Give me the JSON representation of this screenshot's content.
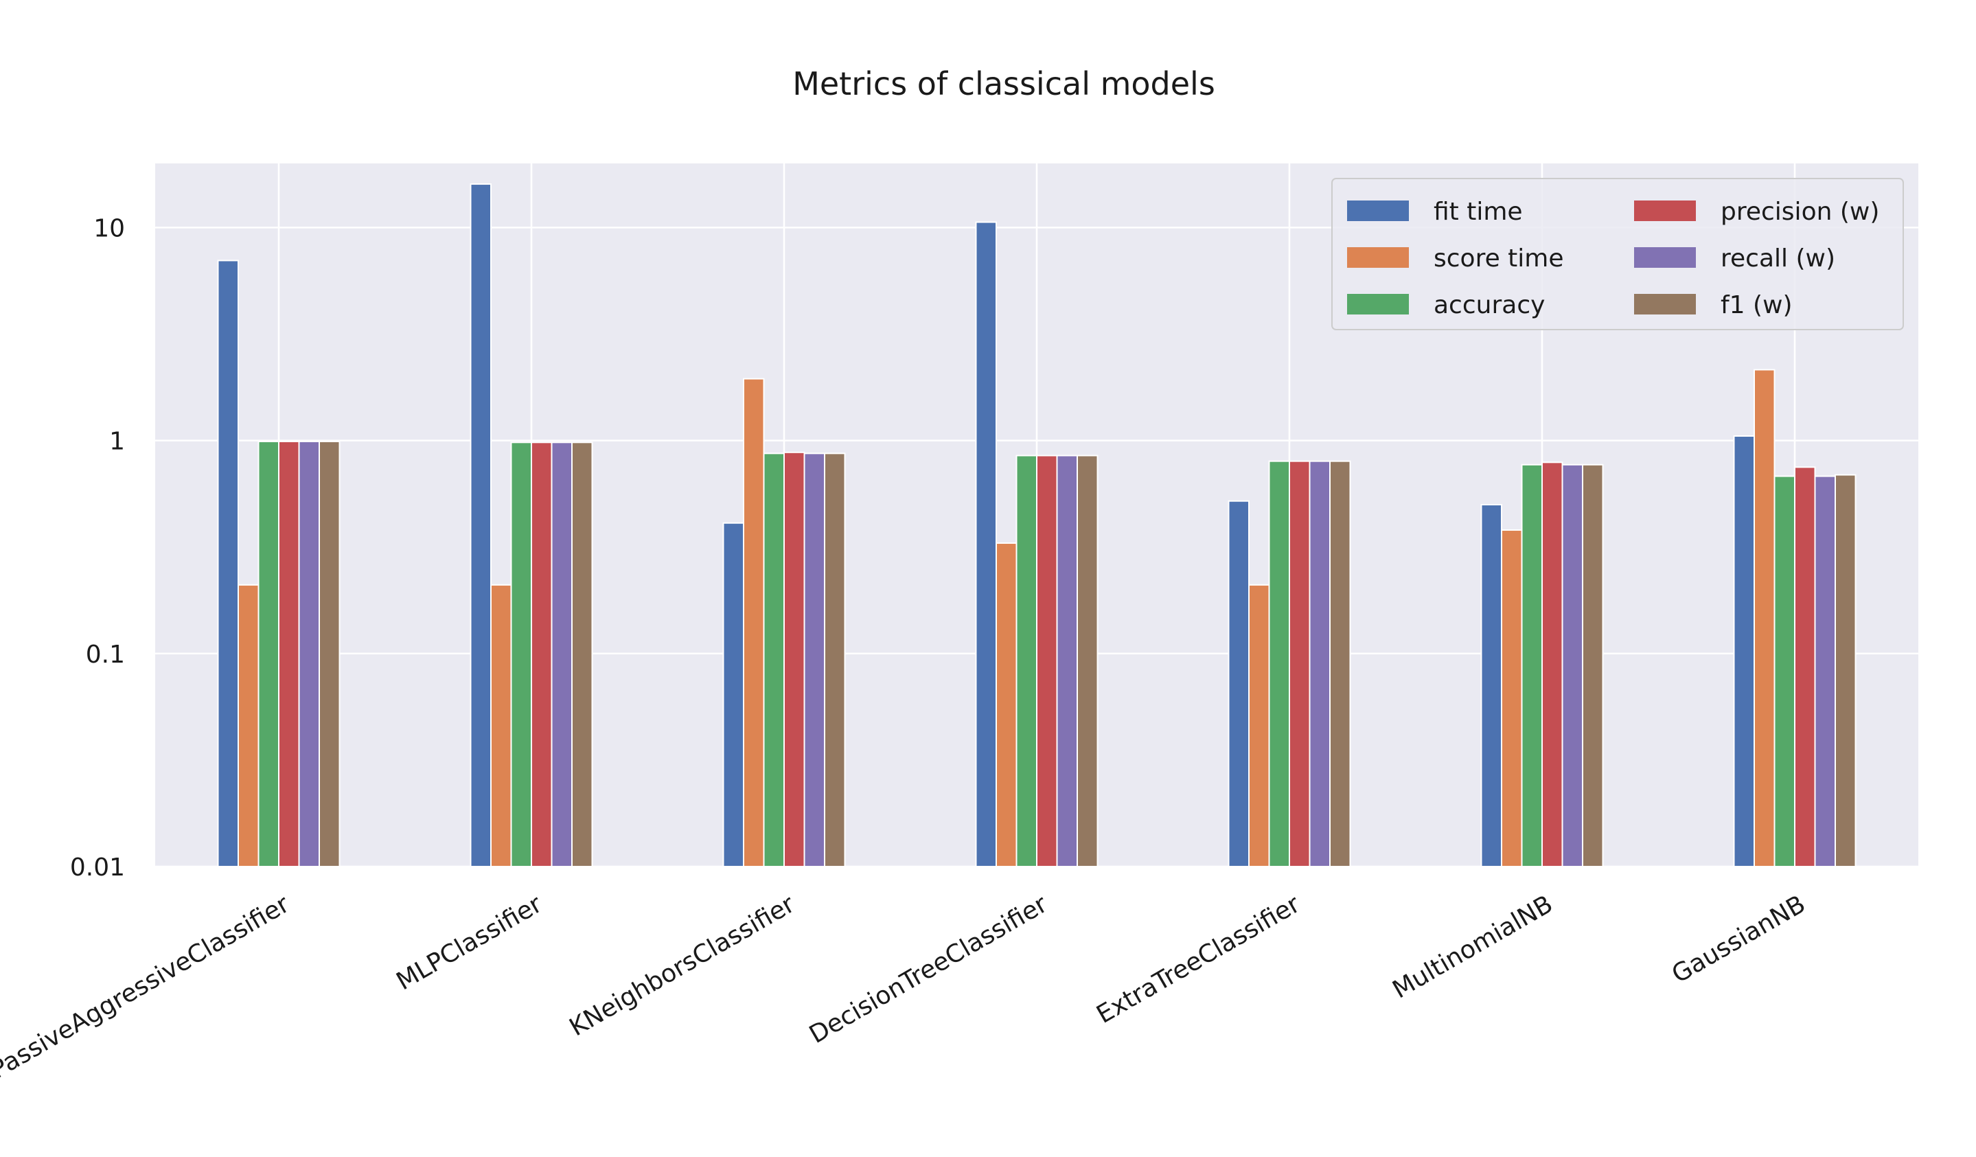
{
  "chart_data": {
    "type": "bar",
    "title": "Metrics of classical models",
    "xlabel": "",
    "ylabel": "",
    "y_scale": "log",
    "ylim": [
      0.01,
      20
    ],
    "y_ticks": [
      0.01,
      0.1,
      1,
      10
    ],
    "y_tick_labels": [
      "0.01",
      "0.1",
      "1",
      "10"
    ],
    "grid": true,
    "legend_position": "top-right",
    "legend_columns": 2,
    "categories": [
      "PassiveAggressiveClassifier",
      "MLPClassifier",
      "KNeighborsClassifier",
      "DecisionTreeClassifier",
      "ExtraTreeClassifier",
      "MultinomialNB",
      "GaussianNB"
    ],
    "series": [
      {
        "name": "fit time",
        "color": "#4c72b0",
        "values": [
          7.0,
          16.0,
          0.41,
          10.6,
          0.52,
          0.5,
          1.05
        ]
      },
      {
        "name": "score time",
        "color": "#dd8452",
        "values": [
          0.21,
          0.21,
          1.95,
          0.33,
          0.21,
          0.38,
          2.15
        ]
      },
      {
        "name": "accuracy",
        "color": "#55a868",
        "values": [
          0.99,
          0.98,
          0.87,
          0.85,
          0.8,
          0.77,
          0.68
        ]
      },
      {
        "name": "precision (w)",
        "color": "#c44e52",
        "values": [
          0.99,
          0.98,
          0.88,
          0.85,
          0.8,
          0.79,
          0.75
        ]
      },
      {
        "name": "recall (w)",
        "color": "#8172b3",
        "values": [
          0.99,
          0.98,
          0.87,
          0.85,
          0.8,
          0.77,
          0.68
        ]
      },
      {
        "name": "f1 (w)",
        "color": "#937860",
        "values": [
          0.99,
          0.98,
          0.87,
          0.85,
          0.8,
          0.77,
          0.69
        ]
      }
    ],
    "colors": {
      "plot_background": "#eaeaf2",
      "grid": "#ffffff",
      "text": "#1a1a1a"
    }
  }
}
